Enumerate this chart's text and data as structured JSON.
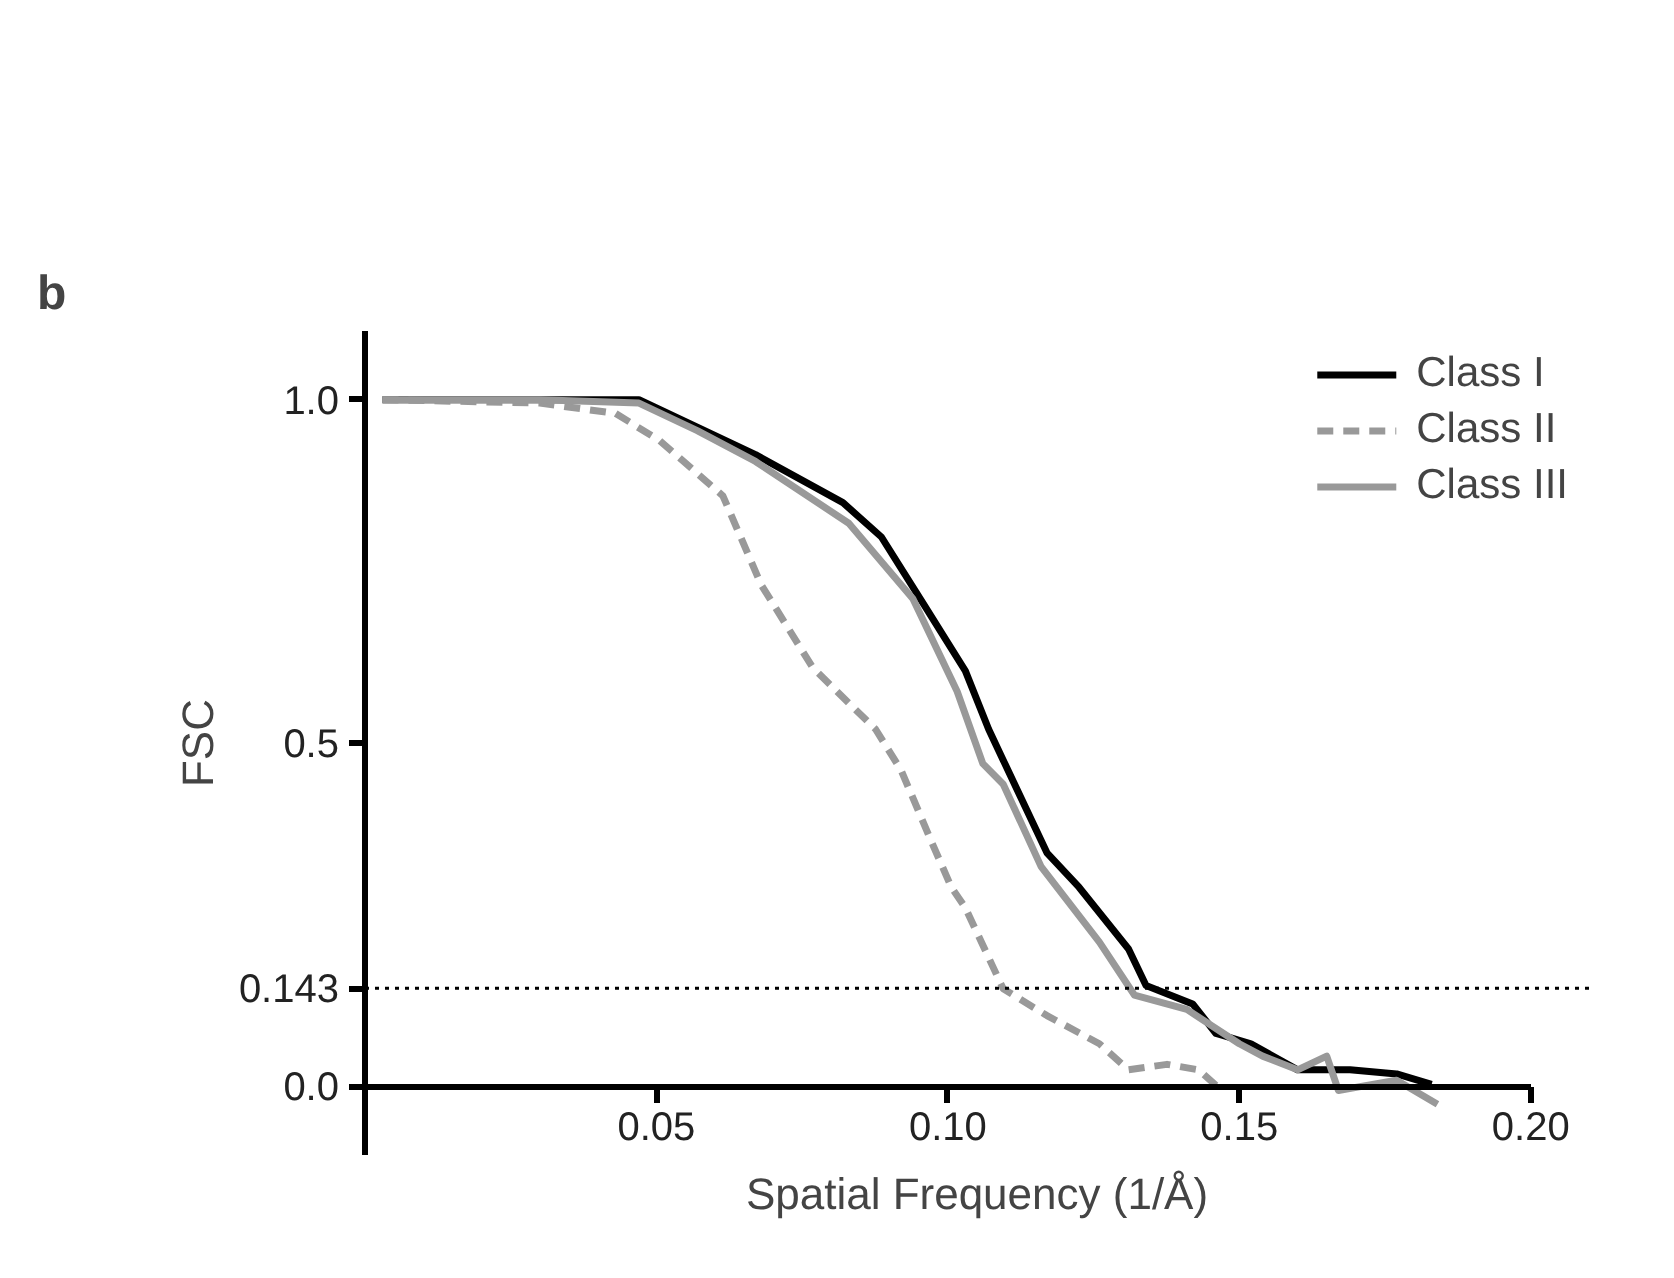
{
  "chart_data": {
    "type": "line",
    "xlabel": "Spatial Frequency (1/Å)",
    "ylabel": "FSC",
    "annotations": [
      "b"
    ],
    "xlim": [
      0,
      0.2
    ],
    "ylim": [
      -0.1,
      1.1
    ],
    "xticks": [
      0.05,
      {
        "value": 0.1,
        "label": "0.10"
      },
      0.15,
      {
        "value": 0.2,
        "label": "0.20"
      }
    ],
    "yticks": [
      {
        "value": 0,
        "label": "0.0"
      },
      0.143,
      0.5,
      {
        "value": 1,
        "label": "1.0"
      }
    ],
    "grid": false,
    "legend": "top right",
    "ref_lines": [
      {
        "axis": "y",
        "value": 0.143,
        "label": null,
        "color": "#000000",
        "line_style": "dotted"
      }
    ],
    "series": [
      {
        "name": "Class I",
        "color": "#000000",
        "line_style": "solid",
        "x": [
          0.003,
          0.03,
          0.047,
          0.057,
          0.067,
          0.082,
          0.0886,
          0.096,
          0.103,
          0.107,
          0.1095,
          0.117,
          0.1225,
          0.131,
          0.134,
          0.142,
          0.146,
          0.152,
          0.16,
          0.169,
          0.177,
          0.183
        ],
        "values": [
          1.0,
          1.0,
          1.0,
          0.96,
          0.92,
          0.85,
          0.8,
          0.7,
          0.605,
          0.52,
          0.475,
          0.34,
          0.29,
          0.2,
          0.147,
          0.12,
          0.077,
          0.062,
          0.024,
          0.024,
          0.018,
          0.003
        ]
      },
      {
        "name": "Class II",
        "color": "#999999",
        "line_style": "dashed",
        "x": [
          0.003,
          0.03,
          0.043,
          0.0506,
          0.0614,
          0.068,
          0.0768,
          0.0876,
          0.092,
          0.097,
          0.1006,
          0.103,
          0.1095,
          0.117,
          0.126,
          0.131,
          0.1376,
          0.143,
          0.147
        ],
        "values": [
          1.0,
          0.995,
          0.98,
          0.94,
          0.86,
          0.73,
          0.61,
          0.52,
          0.46,
          0.36,
          0.29,
          0.26,
          0.142,
          0.103,
          0.062,
          0.024,
          0.032,
          0.024,
          -0.006
        ]
      },
      {
        "name": "Class III",
        "color": "#999999",
        "line_style": "solid",
        "x": [
          0.003,
          0.03,
          0.047,
          0.057,
          0.067,
          0.083,
          0.094,
          0.1016,
          0.106,
          0.1095,
          0.116,
          0.126,
          0.132,
          0.141,
          0.15,
          0.154,
          0.16,
          0.165,
          0.167,
          0.177,
          0.184
        ],
        "values": [
          1.0,
          1.0,
          0.995,
          0.955,
          0.91,
          0.82,
          0.71,
          0.575,
          0.47,
          0.44,
          0.32,
          0.21,
          0.133,
          0.112,
          0.062,
          0.044,
          0.024,
          0.044,
          -0.006,
          0.009,
          -0.026
        ]
      }
    ]
  }
}
